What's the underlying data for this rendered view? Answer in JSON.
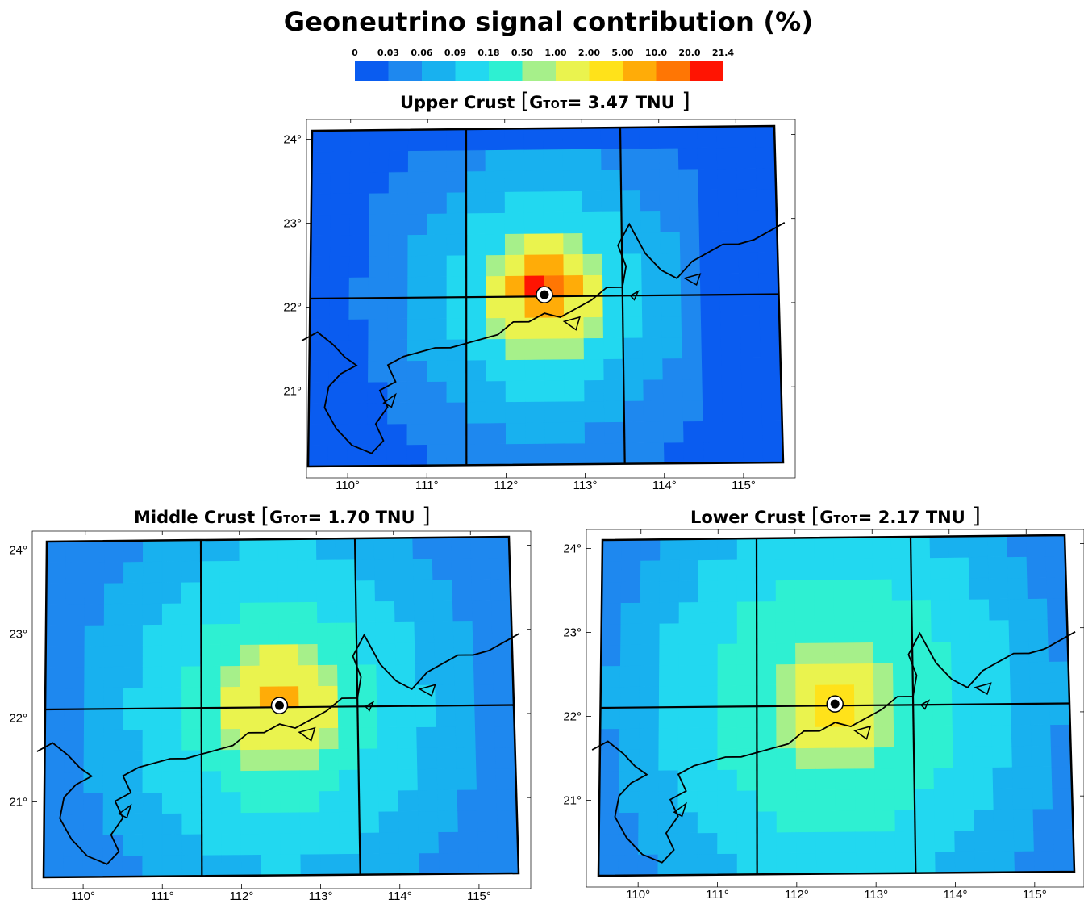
{
  "title": "Geoneutrino signal contribution (%)",
  "colorbar": {
    "tick_labels": [
      "0",
      "0.03",
      "0.06",
      "0.09",
      "0.18",
      "0.50",
      "1.00",
      "2.00",
      "5.00",
      "10.0",
      "20.0",
      "21.4"
    ],
    "colors": [
      "#0a5cf0",
      "#1e88ef",
      "#18b1ef",
      "#22d8f0",
      "#2ef0d2",
      "#a6f08a",
      "#eaf34e",
      "#ffe21a",
      "#ffac08",
      "#ff7604",
      "#ff1402"
    ]
  },
  "panels": [
    {
      "id": "upper",
      "name": "Upper Crust",
      "g_label": "G",
      "g_sub": "TOT",
      "g_value": "= 3.47 TNU",
      "peak_level": 10
    },
    {
      "id": "middle",
      "name": "Middle Crust",
      "g_label": "G",
      "g_sub": "TOT",
      "g_value": "= 1.70 TNU",
      "peak_level": 8
    },
    {
      "id": "lower",
      "name": "Lower Crust",
      "g_label": "G",
      "g_sub": "TOT",
      "g_value": "= 2.17 TNU",
      "peak_level": 7
    }
  ],
  "lon_labels": [
    "110°",
    "111°",
    "112°",
    "113°",
    "114°",
    "115°"
  ],
  "lat_labels": [
    "24°",
    "23°",
    "22°",
    "21°"
  ],
  "map_grid": {
    "lon_min": 109.5,
    "lon_max": 115.5,
    "lat_min": 20.1,
    "lat_max": 24.1,
    "cell_deg": 0.25,
    "detector": {
      "lon": 112.5,
      "lat": 22.12
    },
    "graticule_lons": [
      111.5,
      113.5
    ],
    "graticule_lats": [
      22.1
    ]
  }
}
